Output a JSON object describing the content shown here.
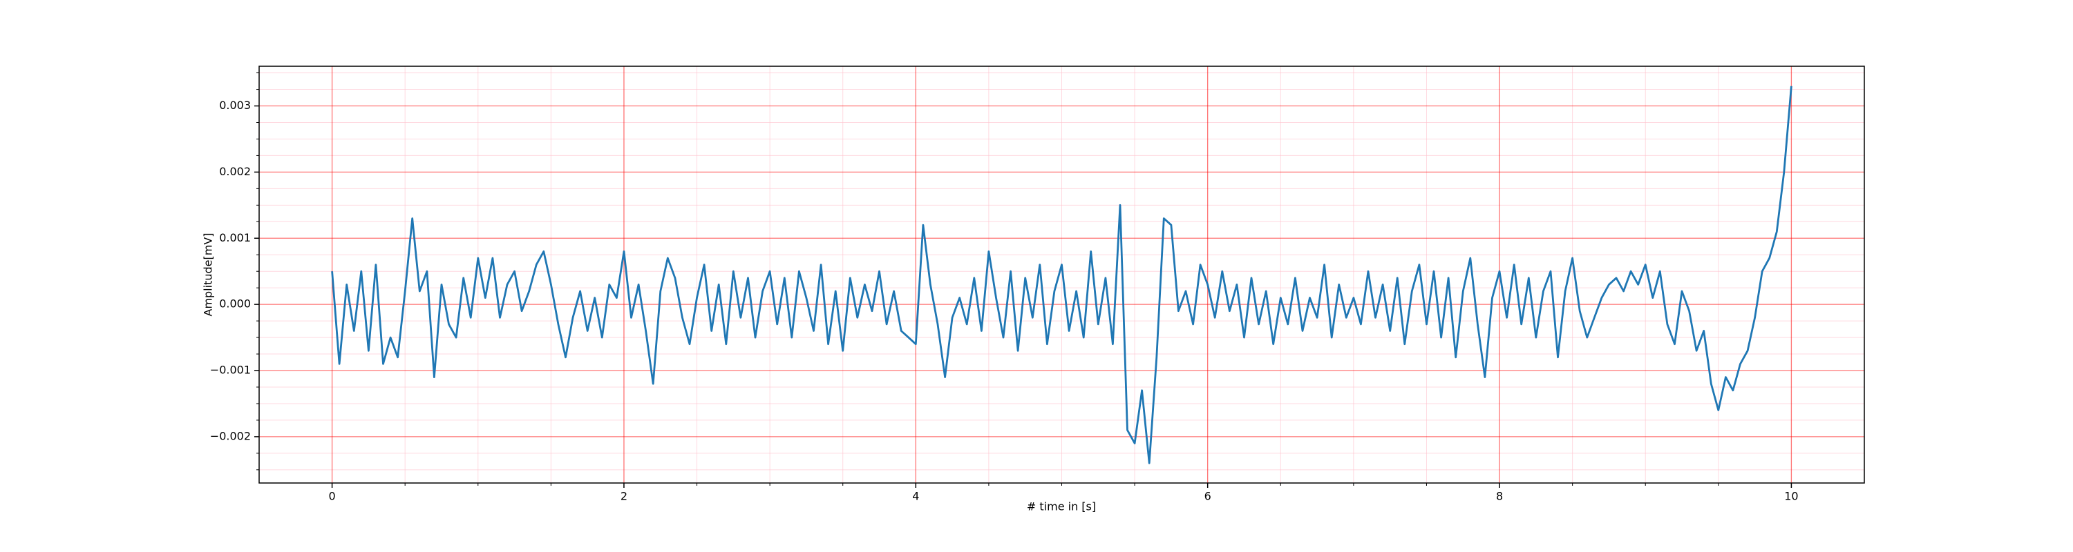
{
  "chart_data": {
    "type": "line",
    "xlabel": "# time in [s]",
    "ylabel": "Amplitude[mV]",
    "x": [
      0,
      0.05,
      0.1,
      0.15,
      0.2,
      0.25,
      0.3,
      0.35,
      0.4,
      0.45,
      0.5,
      0.55,
      0.6,
      0.65,
      0.7,
      0.75,
      0.8,
      0.85,
      0.9,
      0.95,
      1,
      1.05,
      1.1,
      1.15,
      1.2,
      1.25,
      1.3,
      1.35,
      1.4,
      1.45,
      1.5,
      1.55,
      1.6,
      1.65,
      1.7,
      1.75,
      1.8,
      1.85,
      1.9,
      1.95,
      2,
      2.05,
      2.1,
      2.15,
      2.2,
      2.25,
      2.3,
      2.35,
      2.4,
      2.45,
      2.5,
      2.55,
      2.6,
      2.65,
      2.7,
      2.75,
      2.8,
      2.85,
      2.9,
      2.95,
      3,
      3.05,
      3.1,
      3.15,
      3.2,
      3.25,
      3.3,
      3.35,
      3.4,
      3.45,
      3.5,
      3.55,
      3.6,
      3.65,
      3.7,
      3.75,
      3.8,
      3.85,
      3.9,
      3.95,
      4,
      4.05,
      4.1,
      4.15,
      4.2,
      4.25,
      4.3,
      4.35,
      4.4,
      4.45,
      4.5,
      4.55,
      4.6,
      4.65,
      4.7,
      4.75,
      4.8,
      4.85,
      4.9,
      4.95,
      5,
      5.05,
      5.1,
      5.15,
      5.2,
      5.25,
      5.3,
      5.35,
      5.4,
      5.45,
      5.5,
      5.55,
      5.6,
      5.65,
      5.7,
      5.75,
      5.8,
      5.85,
      5.9,
      5.95,
      6,
      6.05,
      6.1,
      6.15,
      6.2,
      6.25,
      6.3,
      6.35,
      6.4,
      6.45,
      6.5,
      6.55,
      6.6,
      6.65,
      6.7,
      6.75,
      6.8,
      6.85,
      6.9,
      6.95,
      7,
      7.05,
      7.1,
      7.15,
      7.2,
      7.25,
      7.3,
      7.35,
      7.4,
      7.45,
      7.5,
      7.55,
      7.6,
      7.65,
      7.7,
      7.75,
      7.8,
      7.85,
      7.9,
      7.95,
      8,
      8.05,
      8.1,
      8.15,
      8.2,
      8.25,
      8.3,
      8.35,
      8.4,
      8.45,
      8.5,
      8.55,
      8.6,
      8.65,
      8.7,
      8.75,
      8.8,
      8.85,
      8.9,
      8.95,
      9,
      9.05,
      9.1,
      9.15,
      9.2,
      9.25,
      9.3,
      9.35,
      9.4,
      9.45,
      9.5,
      9.55,
      9.6,
      9.65,
      9.7,
      9.75,
      9.8,
      9.85,
      9.9,
      9.95,
      10
    ],
    "series": [
      {
        "color": "#1f77b4",
        "values": [
          0.0005,
          -0.0009,
          0.0003,
          -0.0004,
          0.0005,
          -0.0007,
          0.0006,
          -0.0009,
          -0.0005,
          -0.0008,
          0.0002,
          0.0013,
          0.0002,
          0.0005,
          -0.0011,
          0.0003,
          -0.0003,
          -0.0005,
          0.0004,
          -0.0002,
          0.0007,
          0.0001,
          0.0007,
          -0.0002,
          0.0003,
          0.0005,
          -0.0001,
          0.0002,
          0.0006,
          0.0008,
          0.0003,
          -0.0003,
          -0.0008,
          -0.0002,
          0.0002,
          -0.0004,
          0.0001,
          -0.0005,
          0.0003,
          0.0001,
          0.0008,
          -0.0002,
          0.0003,
          -0.0004,
          -0.0012,
          0.0002,
          0.0007,
          0.0004,
          -0.0002,
          -0.0006,
          0.0001,
          0.0006,
          -0.0004,
          0.0003,
          -0.0006,
          0.0005,
          -0.0002,
          0.0004,
          -0.0005,
          0.0002,
          0.0005,
          -0.0003,
          0.0004,
          -0.0005,
          0.0005,
          0.0001,
          -0.0004,
          0.0006,
          -0.0006,
          0.0002,
          -0.0007,
          0.0004,
          -0.0002,
          0.0003,
          -0.0001,
          0.0005,
          -0.0003,
          0.0002,
          -0.0004,
          -0.0005,
          -0.0006,
          0.0012,
          0.0003,
          -0.0003,
          -0.0011,
          -0.0002,
          0.0001,
          -0.0003,
          0.0004,
          -0.0004,
          0.0008,
          0.0001,
          -0.0005,
          0.0005,
          -0.0007,
          0.0004,
          -0.0002,
          0.0006,
          -0.0006,
          0.0002,
          0.0006,
          -0.0004,
          0.0002,
          -0.0005,
          0.0008,
          -0.0003,
          0.0004,
          -0.0006,
          0.0015,
          -0.0019,
          -0.0021,
          -0.0013,
          -0.0024,
          -0.0008,
          0.0013,
          0.0012,
          -0.0001,
          0.0002,
          -0.0003,
          0.0006,
          0.0003,
          -0.0002,
          0.0005,
          -0.0001,
          0.0003,
          -0.0005,
          0.0004,
          -0.0003,
          0.0002,
          -0.0006,
          0.0001,
          -0.0003,
          0.0004,
          -0.0004,
          0.0001,
          -0.0002,
          0.0006,
          -0.0005,
          0.0003,
          -0.0002,
          0.0001,
          -0.0003,
          0.0005,
          -0.0002,
          0.0003,
          -0.0004,
          0.0004,
          -0.0006,
          0.0002,
          0.0006,
          -0.0003,
          0.0005,
          -0.0005,
          0.0004,
          -0.0008,
          0.0002,
          0.0007,
          -0.0003,
          -0.0011,
          0.0001,
          0.0005,
          -0.0002,
          0.0006,
          -0.0003,
          0.0004,
          -0.0005,
          0.0002,
          0.0005,
          -0.0008,
          0.0002,
          0.0007,
          -0.0001,
          -0.0005,
          -0.0002,
          0.0001,
          0.0003,
          0.0004,
          0.0002,
          0.0005,
          0.0003,
          0.0006,
          0.0001,
          0.0005,
          -0.0003,
          -0.0006,
          0.0002,
          -0.0001,
          -0.0007,
          -0.0004,
          -0.0012,
          -0.0016,
          -0.0011,
          -0.0013,
          -0.0009,
          -0.0007,
          -0.0002,
          0.0005,
          0.0007,
          0.0011,
          0.002,
          0.0033
        ]
      }
    ],
    "xlim": [
      -0.5,
      10.5
    ],
    "ylim": [
      -0.0027,
      0.0036
    ],
    "xticks": [
      0,
      2,
      4,
      6,
      8,
      10
    ],
    "yticks": [
      {
        "value": -0.002,
        "label": "−0.002"
      },
      {
        "value": -0.001,
        "label": "−0.001"
      },
      {
        "value": 0,
        "label": "0.000"
      },
      0.001,
      0.002,
      0.003
    ],
    "xminorticks": [
      0.5,
      1,
      1.5,
      2.5,
      3,
      3.5,
      4.5,
      5,
      5.5,
      6.5,
      7,
      7.5,
      8.5,
      9,
      9.5
    ],
    "yminorticks": [
      -0.0025,
      -0.00225,
      -0.00175,
      -0.0015,
      -0.00125,
      -0.00075,
      -0.0005,
      -0.00025,
      0.00025,
      0.0005,
      0.00075,
      0.00125,
      0.0015,
      0.00175,
      0.00225,
      0.0025,
      0.00275,
      0.00325,
      0.0035
    ],
    "grid": true,
    "minor_grid": true,
    "grid_color": "#ff0000",
    "minor_grid_color": "#ffc0cb"
  }
}
